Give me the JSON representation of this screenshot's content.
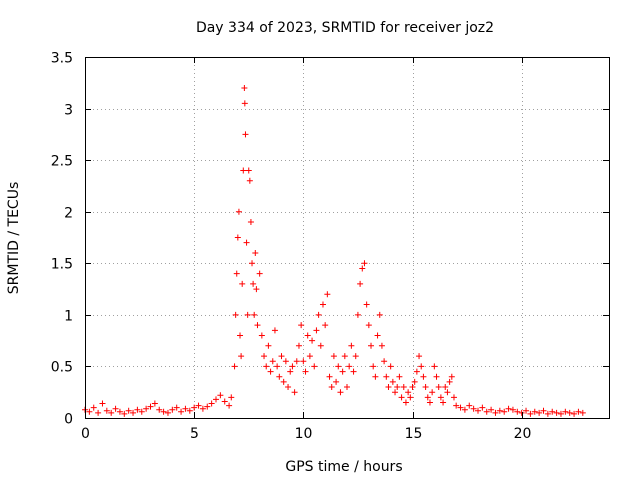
{
  "chart_data": {
    "type": "scatter",
    "title": "Day 334 of 2023, SRMTID for receiver joz2",
    "xlabel": "GPS time / hours",
    "ylabel": "SRMTID / TECUs",
    "xlim": [
      0,
      24
    ],
    "ylim": [
      0,
      3.5
    ],
    "xticks": [
      0,
      5,
      10,
      15,
      20
    ],
    "xtick_labels": [
      "0",
      "5",
      "10",
      "15",
      "20"
    ],
    "yticks": [
      0,
      0.5,
      1,
      1.5,
      2,
      2.5,
      3,
      3.5
    ],
    "ytick_labels": [
      "0",
      "0.5",
      "1",
      "1.5",
      "2",
      "2.5",
      "3",
      "3.5"
    ],
    "grid": true,
    "marker": "+",
    "color": "#ff0000",
    "series": [
      {
        "name": "SRMTID",
        "points": [
          [
            0.0,
            0.08
          ],
          [
            0.2,
            0.06
          ],
          [
            0.4,
            0.1
          ],
          [
            0.6,
            0.05
          ],
          [
            0.8,
            0.14
          ],
          [
            1.0,
            0.07
          ],
          [
            1.2,
            0.05
          ],
          [
            1.4,
            0.09
          ],
          [
            1.6,
            0.06
          ],
          [
            1.8,
            0.04
          ],
          [
            2.0,
            0.07
          ],
          [
            2.2,
            0.05
          ],
          [
            2.4,
            0.08
          ],
          [
            2.6,
            0.06
          ],
          [
            2.8,
            0.09
          ],
          [
            3.0,
            0.11
          ],
          [
            3.2,
            0.14
          ],
          [
            3.4,
            0.08
          ],
          [
            3.6,
            0.06
          ],
          [
            3.8,
            0.05
          ],
          [
            4.0,
            0.08
          ],
          [
            4.2,
            0.1
          ],
          [
            4.4,
            0.06
          ],
          [
            4.6,
            0.09
          ],
          [
            4.8,
            0.07
          ],
          [
            5.0,
            0.1
          ],
          [
            5.2,
            0.12
          ],
          [
            5.4,
            0.09
          ],
          [
            5.6,
            0.11
          ],
          [
            5.8,
            0.14
          ],
          [
            6.0,
            0.18
          ],
          [
            6.2,
            0.22
          ],
          [
            6.4,
            0.16
          ],
          [
            6.6,
            0.12
          ],
          [
            6.7,
            0.2
          ],
          [
            6.85,
            0.5
          ],
          [
            6.9,
            1.0
          ],
          [
            6.95,
            1.4
          ],
          [
            7.0,
            1.75
          ],
          [
            7.05,
            2.0
          ],
          [
            7.1,
            0.8
          ],
          [
            7.15,
            0.6
          ],
          [
            7.2,
            1.3
          ],
          [
            7.25,
            2.4
          ],
          [
            7.3,
            3.2
          ],
          [
            7.32,
            3.05
          ],
          [
            7.35,
            2.75
          ],
          [
            7.4,
            1.7
          ],
          [
            7.45,
            1.0
          ],
          [
            7.5,
            2.4
          ],
          [
            7.55,
            2.3
          ],
          [
            7.6,
            1.9
          ],
          [
            7.65,
            1.5
          ],
          [
            7.7,
            1.3
          ],
          [
            7.75,
            1.0
          ],
          [
            7.8,
            1.6
          ],
          [
            7.85,
            1.25
          ],
          [
            7.9,
            0.9
          ],
          [
            8.0,
            1.4
          ],
          [
            8.1,
            0.8
          ],
          [
            8.2,
            0.6
          ],
          [
            8.3,
            0.5
          ],
          [
            8.4,
            0.7
          ],
          [
            8.5,
            0.45
          ],
          [
            8.6,
            0.55
          ],
          [
            8.7,
            0.85
          ],
          [
            8.8,
            0.5
          ],
          [
            8.9,
            0.4
          ],
          [
            9.0,
            0.6
          ],
          [
            9.1,
            0.35
          ],
          [
            9.2,
            0.55
          ],
          [
            9.3,
            0.3
          ],
          [
            9.4,
            0.45
          ],
          [
            9.5,
            0.5
          ],
          [
            9.6,
            0.25
          ],
          [
            9.7,
            0.55
          ],
          [
            9.8,
            0.7
          ],
          [
            9.9,
            0.9
          ],
          [
            10.0,
            0.55
          ],
          [
            10.1,
            0.45
          ],
          [
            10.2,
            0.8
          ],
          [
            10.3,
            0.6
          ],
          [
            10.4,
            0.75
          ],
          [
            10.5,
            0.5
          ],
          [
            10.6,
            0.85
          ],
          [
            10.7,
            1.0
          ],
          [
            10.8,
            0.7
          ],
          [
            10.9,
            1.1
          ],
          [
            11.0,
            0.9
          ],
          [
            11.1,
            1.2
          ],
          [
            11.2,
            0.4
          ],
          [
            11.3,
            0.3
          ],
          [
            11.4,
            0.6
          ],
          [
            11.5,
            0.35
          ],
          [
            11.6,
            0.5
          ],
          [
            11.7,
            0.25
          ],
          [
            11.8,
            0.45
          ],
          [
            11.9,
            0.6
          ],
          [
            12.0,
            0.3
          ],
          [
            12.1,
            0.5
          ],
          [
            12.2,
            0.7
          ],
          [
            12.3,
            0.45
          ],
          [
            12.4,
            0.6
          ],
          [
            12.5,
            1.0
          ],
          [
            12.6,
            1.3
          ],
          [
            12.7,
            1.45
          ],
          [
            12.8,
            1.5
          ],
          [
            12.9,
            1.1
          ],
          [
            13.0,
            0.9
          ],
          [
            13.1,
            0.7
          ],
          [
            13.2,
            0.5
          ],
          [
            13.3,
            0.4
          ],
          [
            13.4,
            0.8
          ],
          [
            13.5,
            1.0
          ],
          [
            13.6,
            0.7
          ],
          [
            13.7,
            0.55
          ],
          [
            13.8,
            0.4
          ],
          [
            13.9,
            0.3
          ],
          [
            14.0,
            0.5
          ],
          [
            14.1,
            0.35
          ],
          [
            14.2,
            0.25
          ],
          [
            14.3,
            0.3
          ],
          [
            14.4,
            0.4
          ],
          [
            14.5,
            0.2
          ],
          [
            14.6,
            0.3
          ],
          [
            14.7,
            0.15
          ],
          [
            14.8,
            0.25
          ],
          [
            14.9,
            0.2
          ],
          [
            15.0,
            0.3
          ],
          [
            15.1,
            0.35
          ],
          [
            15.2,
            0.45
          ],
          [
            15.3,
            0.6
          ],
          [
            15.4,
            0.5
          ],
          [
            15.5,
            0.4
          ],
          [
            15.6,
            0.3
          ],
          [
            15.7,
            0.2
          ],
          [
            15.8,
            0.15
          ],
          [
            15.9,
            0.25
          ],
          [
            16.0,
            0.5
          ],
          [
            16.1,
            0.4
          ],
          [
            16.2,
            0.3
          ],
          [
            16.3,
            0.2
          ],
          [
            16.4,
            0.15
          ],
          [
            16.5,
            0.3
          ],
          [
            16.6,
            0.25
          ],
          [
            16.7,
            0.35
          ],
          [
            16.8,
            0.4
          ],
          [
            16.9,
            0.2
          ],
          [
            17.0,
            0.12
          ],
          [
            17.2,
            0.1
          ],
          [
            17.4,
            0.08
          ],
          [
            17.6,
            0.12
          ],
          [
            17.8,
            0.09
          ],
          [
            18.0,
            0.07
          ],
          [
            18.2,
            0.1
          ],
          [
            18.4,
            0.06
          ],
          [
            18.6,
            0.08
          ],
          [
            18.8,
            0.05
          ],
          [
            19.0,
            0.07
          ],
          [
            19.2,
            0.06
          ],
          [
            19.4,
            0.09
          ],
          [
            19.6,
            0.08
          ],
          [
            19.8,
            0.06
          ],
          [
            20.0,
            0.05
          ],
          [
            20.2,
            0.07
          ],
          [
            20.4,
            0.04
          ],
          [
            20.6,
            0.06
          ],
          [
            20.8,
            0.05
          ],
          [
            21.0,
            0.07
          ],
          [
            21.2,
            0.04
          ],
          [
            21.4,
            0.06
          ],
          [
            21.6,
            0.05
          ],
          [
            21.8,
            0.04
          ],
          [
            22.0,
            0.06
          ],
          [
            22.2,
            0.05
          ],
          [
            22.4,
            0.04
          ],
          [
            22.6,
            0.06
          ],
          [
            22.8,
            0.05
          ]
        ]
      }
    ]
  }
}
